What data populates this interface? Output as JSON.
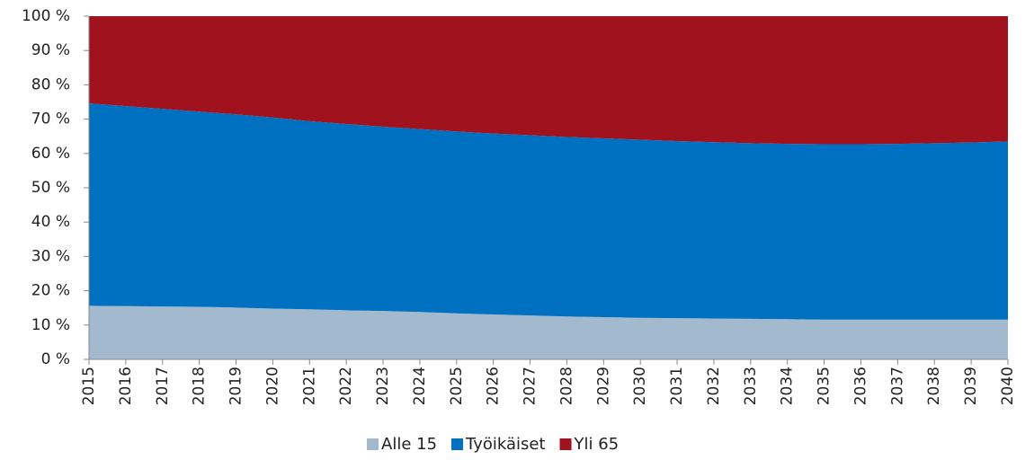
{
  "chart_data": {
    "type": "stacked-area",
    "categories": [
      "2015",
      "2016",
      "2017",
      "2018",
      "2019",
      "2020",
      "2021",
      "2022",
      "2023",
      "2024",
      "2025",
      "2026",
      "2027",
      "2028",
      "2029",
      "2030",
      "2031",
      "2032",
      "2033",
      "2034",
      "2035",
      "2036",
      "2037",
      "2038",
      "2039",
      "2040"
    ],
    "series": [
      {
        "name": "Alle 15",
        "color": "#a3b9cd",
        "values": [
          15.6,
          15.5,
          15.4,
          15.3,
          15.1,
          14.8,
          14.6,
          14.3,
          14.1,
          13.8,
          13.4,
          13.1,
          12.8,
          12.5,
          12.3,
          12.1,
          12.0,
          11.9,
          11.8,
          11.7,
          11.6,
          11.6,
          11.6,
          11.6,
          11.6,
          11.6
        ]
      },
      {
        "name": "Työikäiset",
        "color": "#0070c0",
        "values": [
          59.0,
          58.3,
          57.6,
          56.9,
          56.3,
          55.7,
          54.8,
          54.3,
          53.7,
          53.3,
          53.0,
          52.7,
          52.5,
          52.3,
          52.1,
          51.9,
          51.6,
          51.4,
          51.2,
          51.1,
          51.1,
          51.1,
          51.2,
          51.4,
          51.6,
          51.9
        ]
      },
      {
        "name": "Yli 65",
        "color": "#a0121e",
        "values": [
          25.4,
          26.2,
          27.0,
          27.8,
          28.6,
          29.5,
          30.6,
          31.4,
          32.2,
          32.9,
          33.6,
          34.2,
          34.7,
          35.2,
          35.6,
          36.0,
          36.4,
          36.7,
          37.0,
          37.2,
          37.3,
          37.3,
          37.2,
          37.0,
          36.8,
          36.5
        ]
      }
    ],
    "ylim": [
      0,
      100
    ],
    "yticks": [
      {
        "value": 0,
        "label": "0 %"
      },
      {
        "value": 10,
        "label": "10 %"
      },
      {
        "value": 20,
        "label": "20 %"
      },
      {
        "value": 30,
        "label": "30 %"
      },
      {
        "value": 40,
        "label": "40 %"
      },
      {
        "value": 50,
        "label": "50 %"
      },
      {
        "value": 60,
        "label": "60 %"
      },
      {
        "value": 70,
        "label": "70 %"
      },
      {
        "value": 80,
        "label": "80 %"
      },
      {
        "value": 90,
        "label": "90 %"
      },
      {
        "value": 100,
        "label": "100 %"
      }
    ],
    "legend": "bottom"
  }
}
